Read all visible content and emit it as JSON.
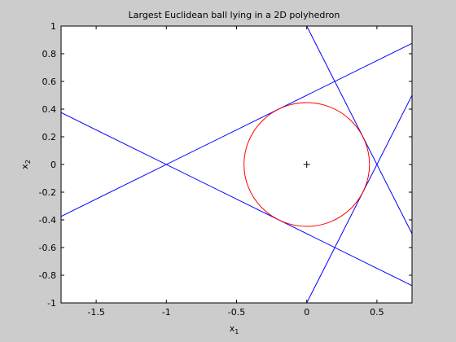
{
  "chart_data": {
    "type": "line",
    "title": "Largest Euclidean ball lying in a 2D polyhedron",
    "xlabel": "x",
    "xlabel_sub": "1",
    "ylabel": "x",
    "ylabel_sub": "2",
    "xlim": [
      -1.75,
      0.75
    ],
    "ylim": [
      -1,
      1
    ],
    "grid": false,
    "xticks": [
      {
        "value": -1.5,
        "label": "-1.5"
      },
      {
        "value": -1,
        "label": "-1"
      },
      {
        "value": -0.5,
        "label": "-0.5"
      },
      {
        "value": 0,
        "label": "0"
      },
      {
        "value": 0.5,
        "label": "0.5"
      }
    ],
    "yticks": [
      {
        "value": -1,
        "label": "-1"
      },
      {
        "value": -0.8,
        "label": "-0.8"
      },
      {
        "value": -0.6,
        "label": "-0.6"
      },
      {
        "value": -0.4,
        "label": "-0.4"
      },
      {
        "value": -0.2,
        "label": "-0.2"
      },
      {
        "value": 0,
        "label": "0"
      },
      {
        "value": 0.2,
        "label": "0.2"
      },
      {
        "value": 0.4,
        "label": "0.4"
      },
      {
        "value": 0.6,
        "label": "0.6"
      },
      {
        "value": 0.8,
        "label": "0.8"
      },
      {
        "value": 1,
        "label": "1"
      }
    ],
    "lines": [
      {
        "color": "#0000ff",
        "points": [
          [
            -1.75,
            -0.375
          ],
          [
            0.75,
            0.875
          ]
        ]
      },
      {
        "color": "#0000ff",
        "points": [
          [
            -1.75,
            0.375
          ],
          [
            0.75,
            -0.875
          ]
        ]
      },
      {
        "color": "#0000ff",
        "points": [
          [
            0,
            1
          ],
          [
            0.75,
            -0.5
          ]
        ]
      },
      {
        "color": "#0000ff",
        "points": [
          [
            0,
            -1
          ],
          [
            0.75,
            0.5
          ]
        ]
      }
    ],
    "circle": {
      "color": "#ff0000",
      "center": [
        0,
        0
      ],
      "radius": 0.447
    },
    "center_marker": {
      "color": "#000000",
      "symbol": "+",
      "point": [
        0,
        0
      ]
    }
  }
}
